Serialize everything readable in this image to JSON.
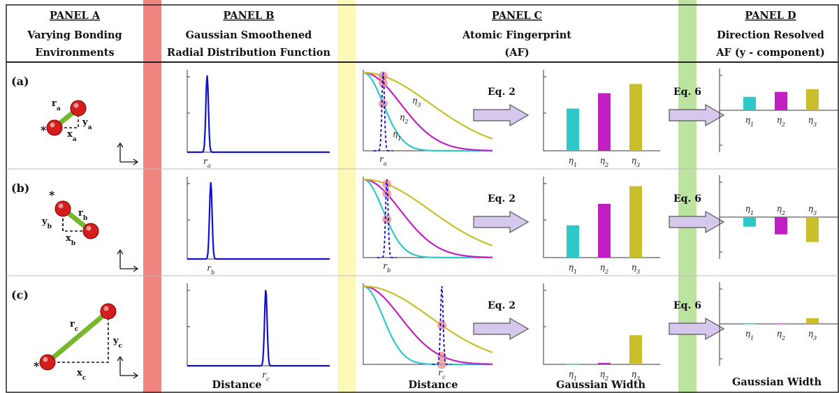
{
  "headers": {
    "a": {
      "title": "PANEL A",
      "line1": "Varying Bonding",
      "line2": "Environments"
    },
    "b": {
      "title": "PANEL B",
      "line1": "Gaussian Smoothened",
      "line2": "Radial Distribution Function"
    },
    "c": {
      "title": "PANEL C",
      "line1": "Atomic Fingerprint",
      "line2": "(AF)"
    },
    "d": {
      "title": "PANEL D",
      "line1": "Direction Resolved",
      "line2": "AF (y - component)"
    }
  },
  "rows": [
    {
      "label": "(a)",
      "bond": "r",
      "bond_sub": "a",
      "x": "x",
      "x_sub": "a",
      "y": "y",
      "y_sub": "a",
      "rdf_tick": "r",
      "rdf_tick_sub": "a",
      "rdf_peak": 0.38,
      "af_values": [
        0.55,
        0.75,
        0.87
      ],
      "dir_values": [
        0.35,
        0.48,
        0.55
      ]
    },
    {
      "label": "(b)",
      "bond": "r",
      "bond_sub": "b",
      "x": "x",
      "x_sub": "b",
      "y": "y",
      "y_sub": "b",
      "rdf_tick": "r",
      "rdf_tick_sub": "b",
      "rdf_peak": 0.45,
      "af_values": [
        0.42,
        0.7,
        0.93
      ],
      "dir_values": [
        -0.25,
        -0.45,
        -0.65
      ]
    },
    {
      "label": "(c)",
      "bond": "r",
      "bond_sub": "c",
      "x": "x",
      "x_sub": "c",
      "y": "y",
      "y_sub": "c",
      "rdf_tick": "r",
      "rdf_tick_sub": "c",
      "rdf_peak": 1.5,
      "af_values": [
        0.0,
        0.02,
        0.38
      ],
      "dir_values": [
        0.0,
        0.0,
        0.15
      ]
    }
  ],
  "eta": [
    "η",
    "η",
    "η"
  ],
  "eta_sub": [
    "1",
    "2",
    "3"
  ],
  "eq2": "Eq. 2",
  "eq6": "Eq. 6",
  "star": "*",
  "xlabels": {
    "b": "Distance",
    "c": "Distance",
    "c_bars": "Gaussian Width",
    "d": "Gaussian Width"
  },
  "colors": {
    "eta1": "#2ec8c8",
    "eta2": "#c21fc2",
    "eta3": "#c8bf2a",
    "rdf": "#1010d0",
    "band_red": "#ef857e",
    "band_yellow": "#fcf8b8",
    "band_green": "#bde3a0",
    "arrow_fill": "#d6c8ec",
    "arrow_stroke": "#555555",
    "atom": "#d41d1d",
    "bond": "#76b72e"
  }
}
